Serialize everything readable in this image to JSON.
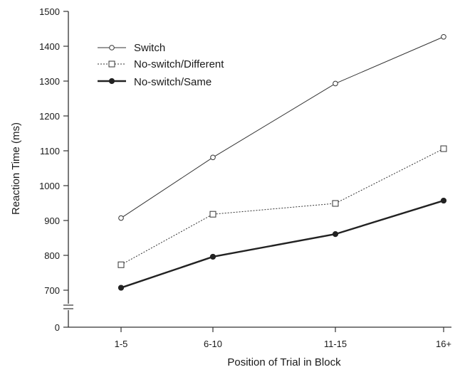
{
  "chart_data": {
    "type": "line",
    "categories": [
      "1-5",
      "6-10",
      "11-15",
      "16+"
    ],
    "xlabel": "Position of Trial in Block",
    "ylabel": "Reaction Time (ms)",
    "ylim": [
      0,
      1500
    ],
    "y_axis_break": [
      0,
      700
    ],
    "yticks": [
      "0",
      "700",
      "800",
      "900",
      "1000",
      "1100",
      "1200",
      "1300",
      "1400",
      "1500"
    ],
    "legend_position": "top-left",
    "grid": false,
    "series": [
      {
        "name": "Switch",
        "values": [
          907,
          1081,
          1293,
          1427
        ],
        "marker": "open-circle",
        "line": "solid-thin",
        "color": "#333333"
      },
      {
        "name": "No-switch/Different",
        "values": [
          773,
          918,
          949,
          1106
        ],
        "marker": "open-square",
        "line": "dotted",
        "color": "#333333"
      },
      {
        "name": "No-switch/Same",
        "values": [
          707,
          796,
          861,
          957
        ],
        "marker": "filled-circle",
        "line": "solid-thick",
        "color": "#222222"
      }
    ]
  }
}
